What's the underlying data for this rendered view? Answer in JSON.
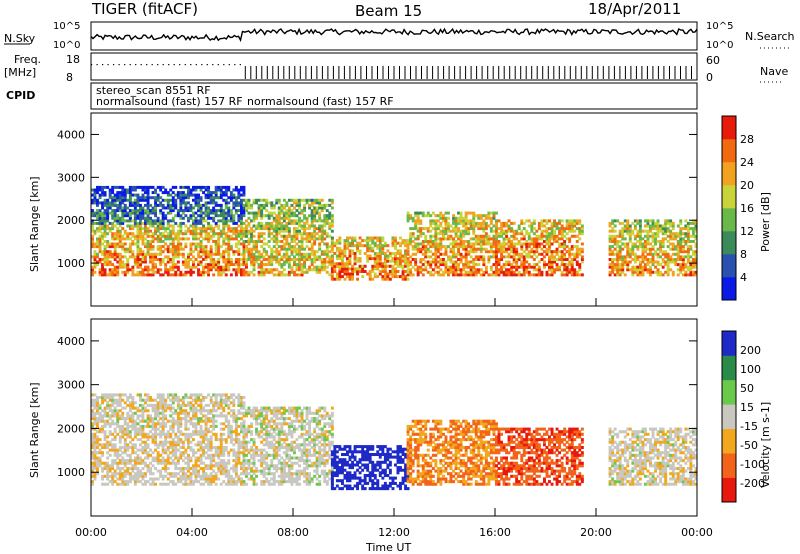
{
  "header": {
    "title_left": "TIGER (fitACF)",
    "title_center": "Beam 15",
    "title_right": "18/Apr/2011"
  },
  "panels": {
    "nsky_label": "N.Sky",
    "nsearch_label": "N.Search",
    "nsky_ticks": [
      "10^5",
      "10^0"
    ],
    "nsky_right_ticks": [
      "10^5",
      "10^0"
    ],
    "freq_label": "Freq.",
    "freq_unit": "[MHz]",
    "freq_ticks": [
      "18",
      "8"
    ],
    "nave_label": "Nave",
    "nave_ticks": [
      "60",
      "0"
    ],
    "cpid_label": "CPID",
    "cpid_line1": "stereo_scan 8551 RF",
    "cpid_line2a": "normalsound (fast) 157 RF",
    "cpid_line2b": "normalsound (fast) 157 RF"
  },
  "power_panel": {
    "ylabel": "Slant Range [km]",
    "yticks": [
      "4000",
      "3000",
      "2000",
      "1000"
    ],
    "colorbar_label": "Power [dB]",
    "colorbar_ticks": [
      "28",
      "24",
      "20",
      "16",
      "12",
      "8",
      "4"
    ]
  },
  "velocity_panel": {
    "ylabel": "Slant Range [km]",
    "yticks": [
      "4000",
      "3000",
      "2000",
      "1000"
    ],
    "colorbar_label": "Velocity [m s-1]",
    "colorbar_ticks": [
      "200",
      "100",
      "50",
      "15",
      "-15",
      "-50",
      "-100",
      "-200"
    ]
  },
  "xaxis": {
    "label": "Time UT",
    "ticks": [
      "00:00",
      "04:00",
      "08:00",
      "12:00",
      "16:00",
      "20:00",
      "00:00"
    ]
  },
  "chart_data": {
    "type": "heatmap",
    "x_range_hours": [
      0,
      24
    ],
    "y_range_km": [
      0,
      4500
    ],
    "power_scale_dB": [
      0,
      32
    ],
    "velocity_scale_ms": [
      -250,
      250
    ],
    "colors": {
      "power": [
        "#0a1ae6",
        "#2a50b0",
        "#3b8a5a",
        "#6ab84a",
        "#c8d43a",
        "#f2a21f",
        "#f26a10",
        "#e81a0a"
      ],
      "velocity": [
        "#e8180c",
        "#f2641a",
        "#f2a81e",
        "#c8c8c0",
        "#6ac84a",
        "#2a8a4a",
        "#1e2ac8"
      ]
    },
    "echo_regions": [
      {
        "t0": 0.0,
        "t1": 6.0,
        "r0": 700,
        "r1": 1900,
        "power": 26,
        "velocity": -10
      },
      {
        "t0": 0.0,
        "t1": 6.0,
        "r0": 1900,
        "r1": 2800,
        "power": 10,
        "velocity": -5
      },
      {
        "t0": 6.0,
        "t1": 9.5,
        "r0": 700,
        "r1": 2500,
        "power": 22,
        "velocity": 0
      },
      {
        "t0": 9.5,
        "t1": 12.5,
        "r0": 600,
        "r1": 1600,
        "power": 26,
        "velocity": 230
      },
      {
        "t0": 12.5,
        "t1": 16.0,
        "r0": 700,
        "r1": 2200,
        "power": 25,
        "velocity": -60
      },
      {
        "t0": 16.0,
        "t1": 19.5,
        "r0": 700,
        "r1": 2000,
        "power": 27,
        "velocity": -110
      },
      {
        "t0": 20.5,
        "t1": 24.0,
        "r0": 700,
        "r1": 2000,
        "power": 24,
        "velocity": -5
      }
    ]
  }
}
